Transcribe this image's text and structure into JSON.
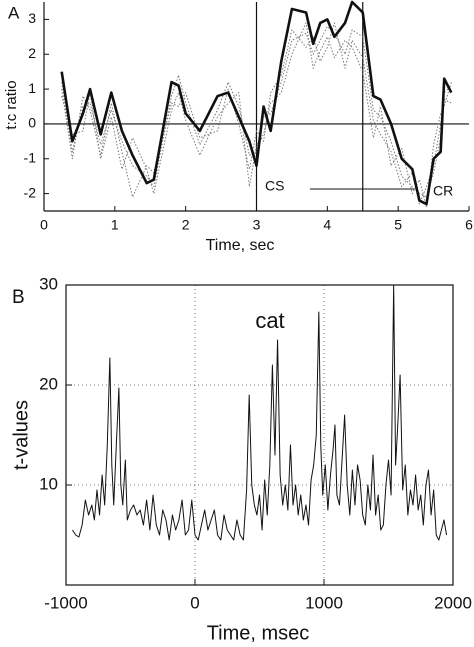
{
  "chart_data": [
    {
      "type": "line",
      "panel_label": "A",
      "xlabel": "Time, sec",
      "ylabel": "t:c ratio",
      "annotations": [
        "CS",
        "CR"
      ],
      "xlim": [
        0,
        6
      ],
      "ylim": [
        -2.5,
        3.5
      ],
      "xticks": [
        0,
        1,
        2,
        3,
        4,
        5,
        6
      ],
      "yticks": [
        -2,
        -1,
        0,
        1,
        2,
        3
      ],
      "vlines": [
        3,
        4.5
      ],
      "hlines": [
        0
      ],
      "grid": false,
      "box": false,
      "x": [
        0.25,
        0.4,
        0.55,
        0.65,
        0.8,
        0.95,
        1.1,
        1.25,
        1.45,
        1.55,
        1.8,
        1.9,
        2.0,
        2.2,
        2.45,
        2.6,
        2.75,
        2.9,
        3.0,
        3.1,
        3.2,
        3.35,
        3.5,
        3.7,
        3.8,
        3.9,
        4.0,
        4.1,
        4.25,
        4.35,
        4.5,
        4.65,
        4.75,
        4.9,
        5.05,
        5.2,
        5.3,
        5.4,
        5.5,
        5.6,
        5.65,
        5.75
      ],
      "series": [
        {
          "color": "#777777",
          "line_style": "dotted",
          "values": [
            1.2,
            -0.8,
            0.5,
            0.6,
            -0.6,
            0.4,
            -0.5,
            -1.2,
            -1.5,
            -1.8,
            0.8,
            1.4,
            0.6,
            -0.6,
            0.4,
            1.2,
            0.5,
            -0.9,
            -0.8,
            0.2,
            0.3,
            1.2,
            2.4,
            2.6,
            2.0,
            2.4,
            2.8,
            2.6,
            2.0,
            2.7,
            2.5,
            0.4,
            0.2,
            -0.5,
            -1.5,
            -1.8,
            -2.0,
            -2.1,
            -1.4,
            -0.4,
            0.9,
            1.1
          ]
        },
        {
          "color": "#777777",
          "line_style": "dotted",
          "values": [
            0.8,
            -0.3,
            -0.2,
            0.9,
            -1.0,
            0.2,
            -1.3,
            -0.4,
            -1.3,
            -2.0,
            0.4,
            0.9,
            0.1,
            -0.9,
            0.2,
            0.6,
            0.9,
            -1.8,
            -0.6,
            -0.3,
            0.6,
            0.9,
            2.0,
            2.9,
            1.6,
            2.1,
            2.5,
            1.9,
            2.4,
            2.2,
            1.5,
            -0.4,
            0.5,
            -1.2,
            -0.7,
            -2.0,
            -1.6,
            -2.4,
            -0.6,
            0.3,
            0.5,
            1.2
          ]
        },
        {
          "color": "#777777",
          "line_style": "dotted",
          "values": [
            1.0,
            -1.0,
            0.8,
            0.4,
            -0.9,
            0.6,
            -0.8,
            -2.1,
            -1.2,
            -1.4,
            0.6,
            0.5,
            0.9,
            -0.4,
            -0.2,
            1.0,
            0.0,
            -1.3,
            -0.2,
            -0.5,
            0.9,
            1.4,
            2.7,
            2.2,
            2.5,
            1.8,
            2.2,
            2.9,
            1.6,
            2.4,
            1.9,
            0.1,
            -0.3,
            -0.8,
            -1.8,
            -1.4,
            -2.3,
            -1.8,
            -1.2,
            0.0,
            0.7,
            0.6
          ]
        },
        {
          "color": "#111111",
          "line_style": "thick",
          "values": [
            1.5,
            -0.5,
            0.3,
            1.0,
            -0.3,
            0.9,
            -0.2,
            -0.9,
            -1.7,
            -1.6,
            1.2,
            1.1,
            0.3,
            -0.2,
            0.8,
            0.9,
            0.2,
            -0.5,
            -1.2,
            0.5,
            -0.2,
            1.8,
            3.3,
            3.2,
            2.3,
            2.9,
            3.0,
            2.5,
            2.9,
            3.5,
            3.2,
            0.8,
            0.7,
            0.0,
            -1.0,
            -1.3,
            -2.2,
            -2.3,
            -1.0,
            -0.8,
            1.3,
            0.9
          ]
        }
      ]
    },
    {
      "type": "line",
      "panel_label": "B",
      "xlabel": "Time, msec",
      "ylabel": "t-values",
      "annotations": [
        "cat"
      ],
      "xlim": [
        -1000,
        2000
      ],
      "ylim": [
        0,
        30
      ],
      "xticks": [
        -1000,
        0,
        1000,
        2000
      ],
      "yticks": [
        10,
        20,
        30
      ],
      "vlines": [],
      "hlines": [],
      "grid": true,
      "box": true,
      "x": [
        -950,
        -925,
        -900,
        -875,
        -850,
        -825,
        -800,
        -780,
        -760,
        -740,
        -720,
        -700,
        -680,
        -660,
        -645,
        -630,
        -610,
        -590,
        -575,
        -560,
        -540,
        -525,
        -500,
        -475,
        -450,
        -425,
        -400,
        -375,
        -350,
        -325,
        -300,
        -275,
        -250,
        -225,
        -200,
        -175,
        -150,
        -125,
        -100,
        -75,
        -50,
        -25,
        0,
        25,
        50,
        75,
        100,
        125,
        150,
        175,
        200,
        225,
        250,
        275,
        300,
        325,
        350,
        375,
        400,
        420,
        440,
        460,
        480,
        500,
        520,
        540,
        560,
        580,
        600,
        620,
        640,
        660,
        680,
        700,
        720,
        740,
        760,
        780,
        800,
        820,
        840,
        860,
        880,
        900,
        920,
        940,
        960,
        975,
        990,
        1010,
        1030,
        1050,
        1070,
        1085,
        1100,
        1120,
        1140,
        1160,
        1180,
        1200,
        1220,
        1240,
        1260,
        1280,
        1300,
        1320,
        1340,
        1360,
        1380,
        1400,
        1420,
        1440,
        1460,
        1480,
        1500,
        1520,
        1540,
        1555,
        1570,
        1590,
        1610,
        1630,
        1650,
        1670,
        1690,
        1710,
        1730,
        1750,
        1770,
        1790,
        1810,
        1830,
        1850,
        1870,
        1890,
        1910,
        1930,
        1950
      ],
      "series": [
        {
          "color": "#111111",
          "line_style": "solid",
          "values": [
            5.5,
            5.0,
            4.8,
            6.0,
            8.5,
            7.0,
            8.0,
            6.5,
            9.5,
            7.0,
            11.0,
            8.0,
            14.0,
            22.7,
            12.0,
            8.0,
            14.0,
            19.7,
            10.0,
            8.0,
            12.5,
            6.5,
            7.5,
            8.0,
            7.0,
            7.5,
            6.0,
            8.5,
            5.5,
            9.0,
            6.0,
            5.0,
            7.5,
            6.5,
            4.5,
            7.0,
            5.5,
            6.5,
            8.5,
            5.0,
            5.5,
            8.5,
            5.0,
            4.5,
            6.0,
            7.5,
            5.5,
            6.5,
            7.5,
            5.0,
            4.5,
            7.0,
            5.5,
            5.0,
            4.5,
            6.5,
            5.0,
            4.5,
            9.5,
            19.0,
            10.0,
            8.0,
            7.0,
            9.0,
            5.5,
            10.5,
            7.0,
            12.0,
            22.0,
            13.0,
            24.5,
            11.0,
            8.0,
            10.0,
            7.5,
            14.0,
            8.0,
            10.0,
            7.0,
            9.0,
            6.5,
            8.0,
            6.0,
            10.5,
            12.0,
            15.0,
            27.3,
            14.0,
            9.0,
            12.0,
            7.5,
            11.0,
            13.5,
            16.0,
            9.0,
            8.0,
            12.5,
            17.0,
            10.0,
            7.0,
            11.5,
            8.0,
            12.0,
            10.5,
            7.0,
            6.0,
            10.0,
            7.5,
            13.0,
            7.0,
            9.0,
            5.5,
            6.0,
            10.0,
            12.5,
            9.0,
            30,
            12.0,
            15.5,
            21.0,
            9.5,
            12.0,
            7.0,
            9.5,
            8.0,
            11.0,
            7.5,
            9.0,
            6.0,
            10.0,
            11.5,
            7.0,
            9.5,
            5.0,
            4.5,
            5.5,
            6.5,
            5.0
          ]
        }
      ]
    }
  ]
}
